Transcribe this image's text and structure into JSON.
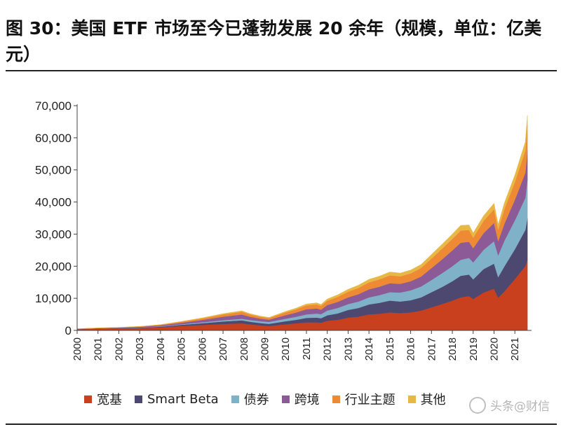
{
  "header": {
    "title": "图 30：美国 ETF 市场至今已蓬勃发展 20 余年（规模，单位：亿美元）"
  },
  "watermark": {
    "text": "头条@财信"
  },
  "chart_data": {
    "type": "area",
    "stacked": true,
    "title": "",
    "xlabel": "",
    "ylabel": "",
    "ylim": [
      0,
      70000
    ],
    "yticks": [
      "0",
      "10,000",
      "20,000",
      "30,000",
      "40,000",
      "50,000",
      "60,000",
      "70,000"
    ],
    "xticks": [
      "2000",
      "2001",
      "2002",
      "2003",
      "2004",
      "2005",
      "2006",
      "2007",
      "2008",
      "2009",
      "2010",
      "2011",
      "2012",
      "2013",
      "2014",
      "2015",
      "2016",
      "2017",
      "2018",
      "2019",
      "2020",
      "2021"
    ],
    "grid": false,
    "legend_position": "bottom",
    "x": [
      2000.0,
      2001.0,
      2002.0,
      2003.0,
      2004.0,
      2005.0,
      2006.0,
      2007.0,
      2007.9,
      2008.3,
      2008.8,
      2009.2,
      2010.0,
      2010.5,
      2011.0,
      2011.5,
      2011.7,
      2012.0,
      2012.5,
      2013.0,
      2013.5,
      2014.0,
      2014.5,
      2015.0,
      2015.5,
      2016.0,
      2016.5,
      2017.0,
      2017.5,
      2018.0,
      2018.4,
      2018.8,
      2019.0,
      2019.5,
      2020.0,
      2020.2,
      2020.5,
      2021.0,
      2021.5,
      2021.6
    ],
    "series": [
      {
        "name": "宽基",
        "color": "#c9401e",
        "values": [
          400,
          550,
          650,
          750,
          950,
          1400,
          1700,
          2000,
          2200,
          1900,
          1600,
          1400,
          1900,
          2200,
          2500,
          2500,
          2400,
          3000,
          3300,
          4000,
          4300,
          5000,
          5200,
          5600,
          5400,
          5600,
          6200,
          7200,
          8200,
          9300,
          10300,
          10700,
          9800,
          11800,
          13000,
          10200,
          12200,
          16000,
          20000,
          22000
        ]
      },
      {
        "name": "Smart Beta",
        "color": "#4d4870",
        "values": [
          30,
          60,
          80,
          120,
          200,
          350,
          550,
          800,
          950,
          800,
          700,
          650,
          950,
          1100,
          1400,
          1500,
          1400,
          1700,
          2000,
          2400,
          2700,
          3100,
          3400,
          3700,
          3600,
          3800,
          4100,
          4700,
          5300,
          6000,
          6700,
          6700,
          6100,
          7300,
          7800,
          6400,
          7800,
          9300,
          11300,
          13000
        ]
      },
      {
        "name": "债券",
        "color": "#7fb2c8",
        "values": [
          0,
          0,
          30,
          80,
          140,
          200,
          280,
          380,
          500,
          550,
          560,
          580,
          800,
          950,
          1100,
          1250,
          1250,
          1500,
          1700,
          1800,
          2000,
          2200,
          2400,
          2600,
          2800,
          3100,
          3400,
          3800,
          4300,
          4700,
          5000,
          5200,
          5300,
          6000,
          7000,
          6800,
          8000,
          9000,
          10000,
          12000
        ]
      },
      {
        "name": "跨境",
        "color": "#8c5a96",
        "values": [
          60,
          90,
          110,
          160,
          280,
          450,
          750,
          1100,
          1300,
          1000,
          800,
          700,
          1100,
          1300,
          1600,
          1600,
          1400,
          1700,
          1900,
          2100,
          2300,
          2500,
          2600,
          2800,
          2700,
          2800,
          3100,
          3700,
          4300,
          4900,
          5300,
          5000,
          4400,
          5200,
          5700,
          4400,
          5300,
          6400,
          7800,
          9000
        ]
      },
      {
        "name": "行业主题",
        "color": "#ee8a34",
        "values": [
          30,
          60,
          70,
          110,
          190,
          300,
          450,
          700,
          850,
          700,
          560,
          500,
          850,
          1000,
          1200,
          1250,
          1150,
          1350,
          1550,
          1750,
          1950,
          2150,
          2300,
          2450,
          2350,
          2450,
          2650,
          3000,
          3300,
          3600,
          3800,
          3700,
          3300,
          3800,
          4300,
          3600,
          4600,
          5500,
          6900,
          8000
        ]
      },
      {
        "name": "其他",
        "color": "#e8b847",
        "values": [
          0,
          10,
          20,
          30,
          50,
          100,
          170,
          230,
          300,
          270,
          230,
          200,
          300,
          380,
          450,
          500,
          480,
          550,
          650,
          750,
          850,
          950,
          1000,
          1050,
          1000,
          1050,
          1100,
          1250,
          1400,
          1500,
          1600,
          1550,
          1450,
          1600,
          1800,
          1600,
          1900,
          2200,
          2700,
          3000
        ]
      }
    ]
  }
}
